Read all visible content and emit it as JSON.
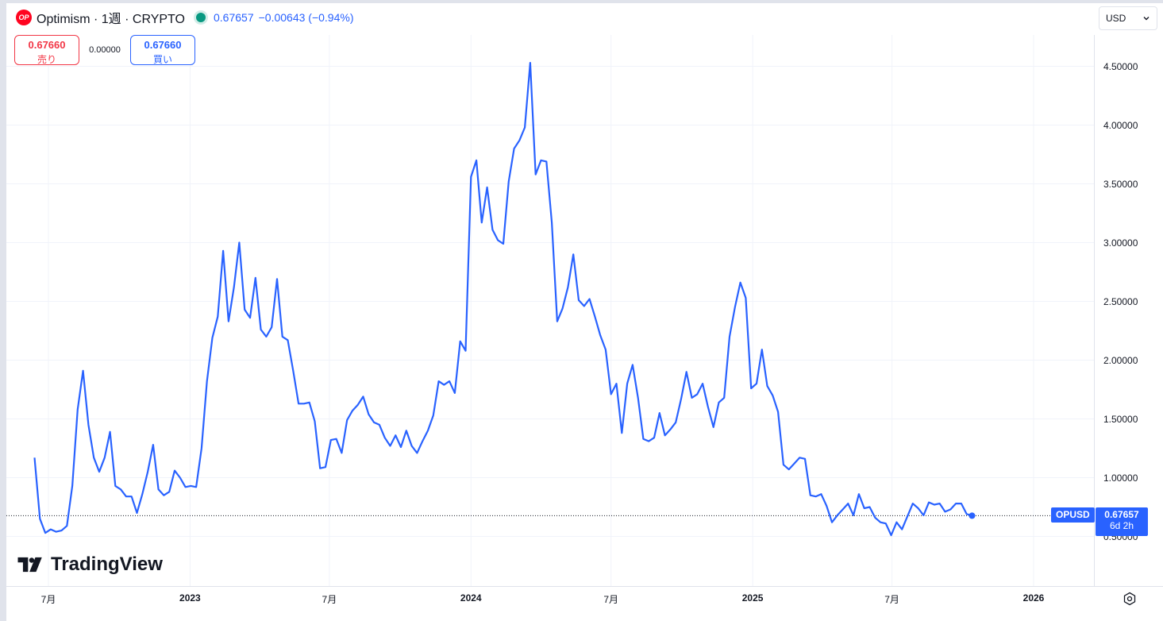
{
  "header": {
    "logo_text": "OP",
    "title": "Optimism · 1週 · CRYPTO",
    "price": "0.67657",
    "change": "−0.00643 (−0.94%)",
    "status_color": "#089981"
  },
  "trade": {
    "sell_price": "0.67660",
    "sell_label": "売り",
    "spread": "0.00000",
    "buy_price": "0.67660",
    "buy_label": "買い"
  },
  "currency": {
    "value": "USD"
  },
  "brand": {
    "name": "TradingView"
  },
  "price_tag": {
    "ticker": "OPUSD",
    "price": "0.67657",
    "countdown": "6d 2h"
  },
  "colors": {
    "line": "#2962ff",
    "accent": "#2962ff",
    "sell": "#f23645"
  },
  "chart_data": {
    "type": "line",
    "xlabel": "",
    "ylabel": "",
    "ylim": [
      0.0,
      4.9
    ],
    "x_tick_labels": [
      "7月",
      "2023",
      "7月",
      "2024",
      "7月",
      "2025",
      "7月",
      "2026"
    ],
    "x_tick_dates": [
      "2022-07-01",
      "2023-01-01",
      "2023-07-01",
      "2024-01-01",
      "2024-07-01",
      "2025-01-01",
      "2025-07-01",
      "2026-01-01"
    ],
    "y_ticks": [
      0.5,
      1.0,
      1.5,
      2.0,
      2.5,
      3.0,
      3.5,
      4.0,
      4.5
    ],
    "y_tick_labels": [
      "0.50000",
      "1.00000",
      "1.50000",
      "2.00000",
      "2.50000",
      "3.00000",
      "3.50000",
      "4.00000",
      "4.50000"
    ],
    "last_price": 0.67657,
    "grid": true,
    "series": [
      {
        "values": [
          {
            "x": "2022-06-13",
            "y": 1.17
          },
          {
            "x": "2022-06-20",
            "y": 0.65
          },
          {
            "x": "2022-06-27",
            "y": 0.53
          },
          {
            "x": "2022-07-04",
            "y": 0.56
          },
          {
            "x": "2022-07-11",
            "y": 0.54
          },
          {
            "x": "2022-07-18",
            "y": 0.55
          },
          {
            "x": "2022-07-25",
            "y": 0.59
          },
          {
            "x": "2022-08-01",
            "y": 0.93
          },
          {
            "x": "2022-08-08",
            "y": 1.58
          },
          {
            "x": "2022-08-15",
            "y": 1.91
          },
          {
            "x": "2022-08-22",
            "y": 1.45
          },
          {
            "x": "2022-08-29",
            "y": 1.17
          },
          {
            "x": "2022-09-05",
            "y": 1.05
          },
          {
            "x": "2022-09-12",
            "y": 1.17
          },
          {
            "x": "2022-09-19",
            "y": 1.39
          },
          {
            "x": "2022-09-26",
            "y": 0.93
          },
          {
            "x": "2022-10-03",
            "y": 0.9
          },
          {
            "x": "2022-10-10",
            "y": 0.84
          },
          {
            "x": "2022-10-17",
            "y": 0.84
          },
          {
            "x": "2022-10-24",
            "y": 0.7
          },
          {
            "x": "2022-10-31",
            "y": 0.86
          },
          {
            "x": "2022-11-07",
            "y": 1.05
          },
          {
            "x": "2022-11-14",
            "y": 1.28
          },
          {
            "x": "2022-11-21",
            "y": 0.9
          },
          {
            "x": "2022-11-28",
            "y": 0.85
          },
          {
            "x": "2022-12-05",
            "y": 0.88
          },
          {
            "x": "2022-12-12",
            "y": 1.06
          },
          {
            "x": "2022-12-19",
            "y": 1.0
          },
          {
            "x": "2022-12-26",
            "y": 0.92
          },
          {
            "x": "2023-01-02",
            "y": 0.93
          },
          {
            "x": "2023-01-09",
            "y": 0.92
          },
          {
            "x": "2023-01-16",
            "y": 1.25
          },
          {
            "x": "2023-01-23",
            "y": 1.82
          },
          {
            "x": "2023-01-30",
            "y": 2.19
          },
          {
            "x": "2023-02-06",
            "y": 2.37
          },
          {
            "x": "2023-02-13",
            "y": 2.93
          },
          {
            "x": "2023-02-20",
            "y": 2.33
          },
          {
            "x": "2023-02-27",
            "y": 2.62
          },
          {
            "x": "2023-03-06",
            "y": 3.0
          },
          {
            "x": "2023-03-13",
            "y": 2.43
          },
          {
            "x": "2023-03-20",
            "y": 2.36
          },
          {
            "x": "2023-03-27",
            "y": 2.7
          },
          {
            "x": "2023-04-03",
            "y": 2.26
          },
          {
            "x": "2023-04-10",
            "y": 2.2
          },
          {
            "x": "2023-04-17",
            "y": 2.28
          },
          {
            "x": "2023-04-24",
            "y": 2.69
          },
          {
            "x": "2023-05-01",
            "y": 2.2
          },
          {
            "x": "2023-05-08",
            "y": 2.17
          },
          {
            "x": "2023-05-15",
            "y": 1.91
          },
          {
            "x": "2023-05-22",
            "y": 1.63
          },
          {
            "x": "2023-05-29",
            "y": 1.63
          },
          {
            "x": "2023-06-05",
            "y": 1.64
          },
          {
            "x": "2023-06-12",
            "y": 1.48
          },
          {
            "x": "2023-06-19",
            "y": 1.08
          },
          {
            "x": "2023-06-26",
            "y": 1.09
          },
          {
            "x": "2023-07-03",
            "y": 1.32
          },
          {
            "x": "2023-07-10",
            "y": 1.33
          },
          {
            "x": "2023-07-17",
            "y": 1.21
          },
          {
            "x": "2023-07-24",
            "y": 1.49
          },
          {
            "x": "2023-07-31",
            "y": 1.57
          },
          {
            "x": "2023-08-07",
            "y": 1.62
          },
          {
            "x": "2023-08-14",
            "y": 1.69
          },
          {
            "x": "2023-08-21",
            "y": 1.54
          },
          {
            "x": "2023-08-28",
            "y": 1.47
          },
          {
            "x": "2023-09-04",
            "y": 1.45
          },
          {
            "x": "2023-09-11",
            "y": 1.34
          },
          {
            "x": "2023-09-18",
            "y": 1.27
          },
          {
            "x": "2023-09-25",
            "y": 1.36
          },
          {
            "x": "2023-10-02",
            "y": 1.26
          },
          {
            "x": "2023-10-09",
            "y": 1.4
          },
          {
            "x": "2023-10-16",
            "y": 1.27
          },
          {
            "x": "2023-10-23",
            "y": 1.21
          },
          {
            "x": "2023-10-30",
            "y": 1.31
          },
          {
            "x": "2023-11-06",
            "y": 1.4
          },
          {
            "x": "2023-11-13",
            "y": 1.53
          },
          {
            "x": "2023-11-20",
            "y": 1.82
          },
          {
            "x": "2023-11-27",
            "y": 1.79
          },
          {
            "x": "2023-12-04",
            "y": 1.82
          },
          {
            "x": "2023-12-11",
            "y": 1.72
          },
          {
            "x": "2023-12-18",
            "y": 2.16
          },
          {
            "x": "2023-12-25",
            "y": 2.08
          },
          {
            "x": "2024-01-01",
            "y": 3.56
          },
          {
            "x": "2024-01-08",
            "y": 3.7
          },
          {
            "x": "2024-01-15",
            "y": 3.17
          },
          {
            "x": "2024-01-22",
            "y": 3.47
          },
          {
            "x": "2024-01-29",
            "y": 3.11
          },
          {
            "x": "2024-02-05",
            "y": 3.02
          },
          {
            "x": "2024-02-12",
            "y": 2.99
          },
          {
            "x": "2024-02-19",
            "y": 3.52
          },
          {
            "x": "2024-02-26",
            "y": 3.8
          },
          {
            "x": "2024-03-04",
            "y": 3.87
          },
          {
            "x": "2024-03-11",
            "y": 3.98
          },
          {
            "x": "2024-03-18",
            "y": 4.53
          },
          {
            "x": "2024-03-25",
            "y": 3.58
          },
          {
            "x": "2024-04-01",
            "y": 3.7
          },
          {
            "x": "2024-04-08",
            "y": 3.69
          },
          {
            "x": "2024-04-15",
            "y": 3.17
          },
          {
            "x": "2024-04-22",
            "y": 2.33
          },
          {
            "x": "2024-04-29",
            "y": 2.44
          },
          {
            "x": "2024-05-06",
            "y": 2.62
          },
          {
            "x": "2024-05-13",
            "y": 2.9
          },
          {
            "x": "2024-05-20",
            "y": 2.51
          },
          {
            "x": "2024-05-27",
            "y": 2.46
          },
          {
            "x": "2024-06-03",
            "y": 2.52
          },
          {
            "x": "2024-06-10",
            "y": 2.37
          },
          {
            "x": "2024-06-17",
            "y": 2.21
          },
          {
            "x": "2024-06-24",
            "y": 2.09
          },
          {
            "x": "2024-07-01",
            "y": 1.71
          },
          {
            "x": "2024-07-08",
            "y": 1.8
          },
          {
            "x": "2024-07-15",
            "y": 1.38
          },
          {
            "x": "2024-07-22",
            "y": 1.8
          },
          {
            "x": "2024-07-29",
            "y": 1.96
          },
          {
            "x": "2024-08-05",
            "y": 1.68
          },
          {
            "x": "2024-08-12",
            "y": 1.33
          },
          {
            "x": "2024-08-19",
            "y": 1.31
          },
          {
            "x": "2024-08-26",
            "y": 1.34
          },
          {
            "x": "2024-09-02",
            "y": 1.55
          },
          {
            "x": "2024-09-09",
            "y": 1.36
          },
          {
            "x": "2024-09-16",
            "y": 1.41
          },
          {
            "x": "2024-09-23",
            "y": 1.47
          },
          {
            "x": "2024-09-30",
            "y": 1.67
          },
          {
            "x": "2024-10-07",
            "y": 1.9
          },
          {
            "x": "2024-10-14",
            "y": 1.68
          },
          {
            "x": "2024-10-21",
            "y": 1.71
          },
          {
            "x": "2024-10-28",
            "y": 1.8
          },
          {
            "x": "2024-11-04",
            "y": 1.6
          },
          {
            "x": "2024-11-11",
            "y": 1.43
          },
          {
            "x": "2024-11-18",
            "y": 1.64
          },
          {
            "x": "2024-11-25",
            "y": 1.68
          },
          {
            "x": "2024-12-02",
            "y": 2.2
          },
          {
            "x": "2024-12-09",
            "y": 2.45
          },
          {
            "x": "2024-12-16",
            "y": 2.66
          },
          {
            "x": "2024-12-23",
            "y": 2.53
          },
          {
            "x": "2024-12-30",
            "y": 1.76
          },
          {
            "x": "2025-01-06",
            "y": 1.8
          },
          {
            "x": "2025-01-13",
            "y": 2.09
          },
          {
            "x": "2025-01-20",
            "y": 1.78
          },
          {
            "x": "2025-01-27",
            "y": 1.7
          },
          {
            "x": "2025-02-03",
            "y": 1.56
          },
          {
            "x": "2025-02-10",
            "y": 1.11
          },
          {
            "x": "2025-02-17",
            "y": 1.07
          },
          {
            "x": "2025-02-24",
            "y": 1.12
          },
          {
            "x": "2025-03-03",
            "y": 1.17
          },
          {
            "x": "2025-03-10",
            "y": 1.16
          },
          {
            "x": "2025-03-17",
            "y": 0.85
          },
          {
            "x": "2025-03-24",
            "y": 0.84
          },
          {
            "x": "2025-03-31",
            "y": 0.86
          },
          {
            "x": "2025-04-07",
            "y": 0.76
          },
          {
            "x": "2025-04-14",
            "y": 0.62
          },
          {
            "x": "2025-04-21",
            "y": 0.68
          },
          {
            "x": "2025-04-28",
            "y": 0.73
          },
          {
            "x": "2025-05-05",
            "y": 0.78
          },
          {
            "x": "2025-05-12",
            "y": 0.68
          },
          {
            "x": "2025-05-19",
            "y": 0.86
          },
          {
            "x": "2025-05-26",
            "y": 0.74
          },
          {
            "x": "2025-06-02",
            "y": 0.75
          },
          {
            "x": "2025-06-09",
            "y": 0.66
          },
          {
            "x": "2025-06-16",
            "y": 0.62
          },
          {
            "x": "2025-06-23",
            "y": 0.61
          },
          {
            "x": "2025-06-30",
            "y": 0.51
          },
          {
            "x": "2025-07-07",
            "y": 0.62
          },
          {
            "x": "2025-07-14",
            "y": 0.56
          },
          {
            "x": "2025-07-21",
            "y": 0.67
          },
          {
            "x": "2025-07-28",
            "y": 0.78
          },
          {
            "x": "2025-08-04",
            "y": 0.74
          },
          {
            "x": "2025-08-11",
            "y": 0.68
          },
          {
            "x": "2025-08-18",
            "y": 0.79
          },
          {
            "x": "2025-08-25",
            "y": 0.77
          },
          {
            "x": "2025-09-01",
            "y": 0.78
          },
          {
            "x": "2025-09-08",
            "y": 0.71
          },
          {
            "x": "2025-09-15",
            "y": 0.73
          },
          {
            "x": "2025-09-22",
            "y": 0.78
          },
          {
            "x": "2025-09-29",
            "y": 0.78
          },
          {
            "x": "2025-10-06",
            "y": 0.69
          },
          {
            "x": "2025-10-13",
            "y": 0.68
          }
        ]
      }
    ]
  }
}
